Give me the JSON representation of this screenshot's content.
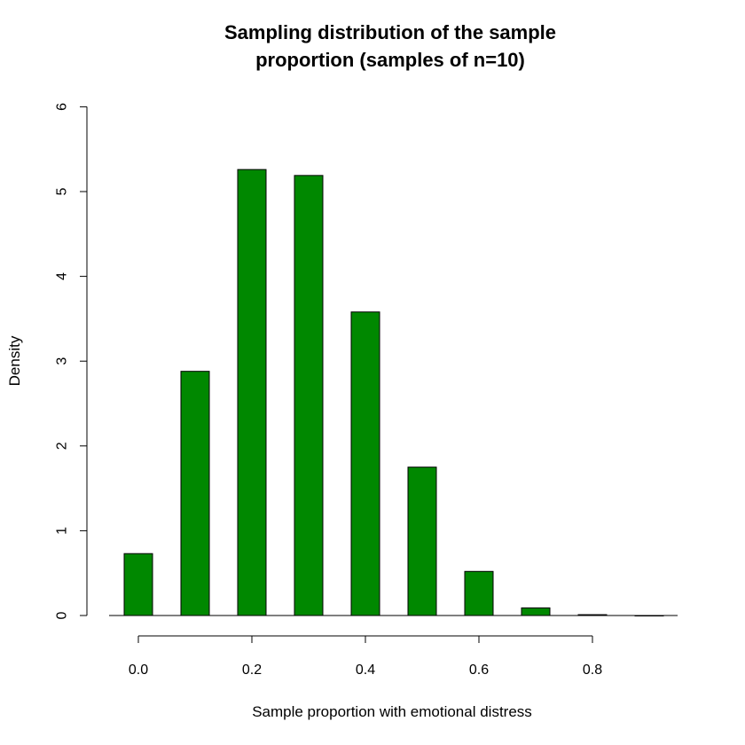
{
  "chart_data": {
    "type": "bar",
    "title_lines": [
      "Sampling distribution of the sample",
      "proportion (samples of n=10)"
    ],
    "xlabel": "Sample proportion with emotional distress",
    "ylabel": "Density",
    "x": [
      0.0,
      0.1,
      0.2,
      0.3,
      0.4,
      0.5,
      0.6,
      0.7,
      0.8,
      0.9
    ],
    "values": [
      0.73,
      2.88,
      5.26,
      5.19,
      3.58,
      1.75,
      0.52,
      0.09,
      0.01,
      0.0
    ],
    "bar_width": 0.05,
    "xlim": [
      -0.05,
      0.95
    ],
    "ylim": [
      0,
      6
    ],
    "xticks": [
      "0.0",
      "0.2",
      "0.4",
      "0.6",
      "0.8"
    ],
    "xtick_values": [
      0.0,
      0.2,
      0.4,
      0.6,
      0.8
    ],
    "yticks": [
      "0",
      "1",
      "2",
      "3",
      "4",
      "5",
      "6"
    ],
    "ytick_values": [
      0,
      1,
      2,
      3,
      4,
      5,
      6
    ],
    "bar_color": "#008800",
    "grid": false,
    "legend": false
  }
}
